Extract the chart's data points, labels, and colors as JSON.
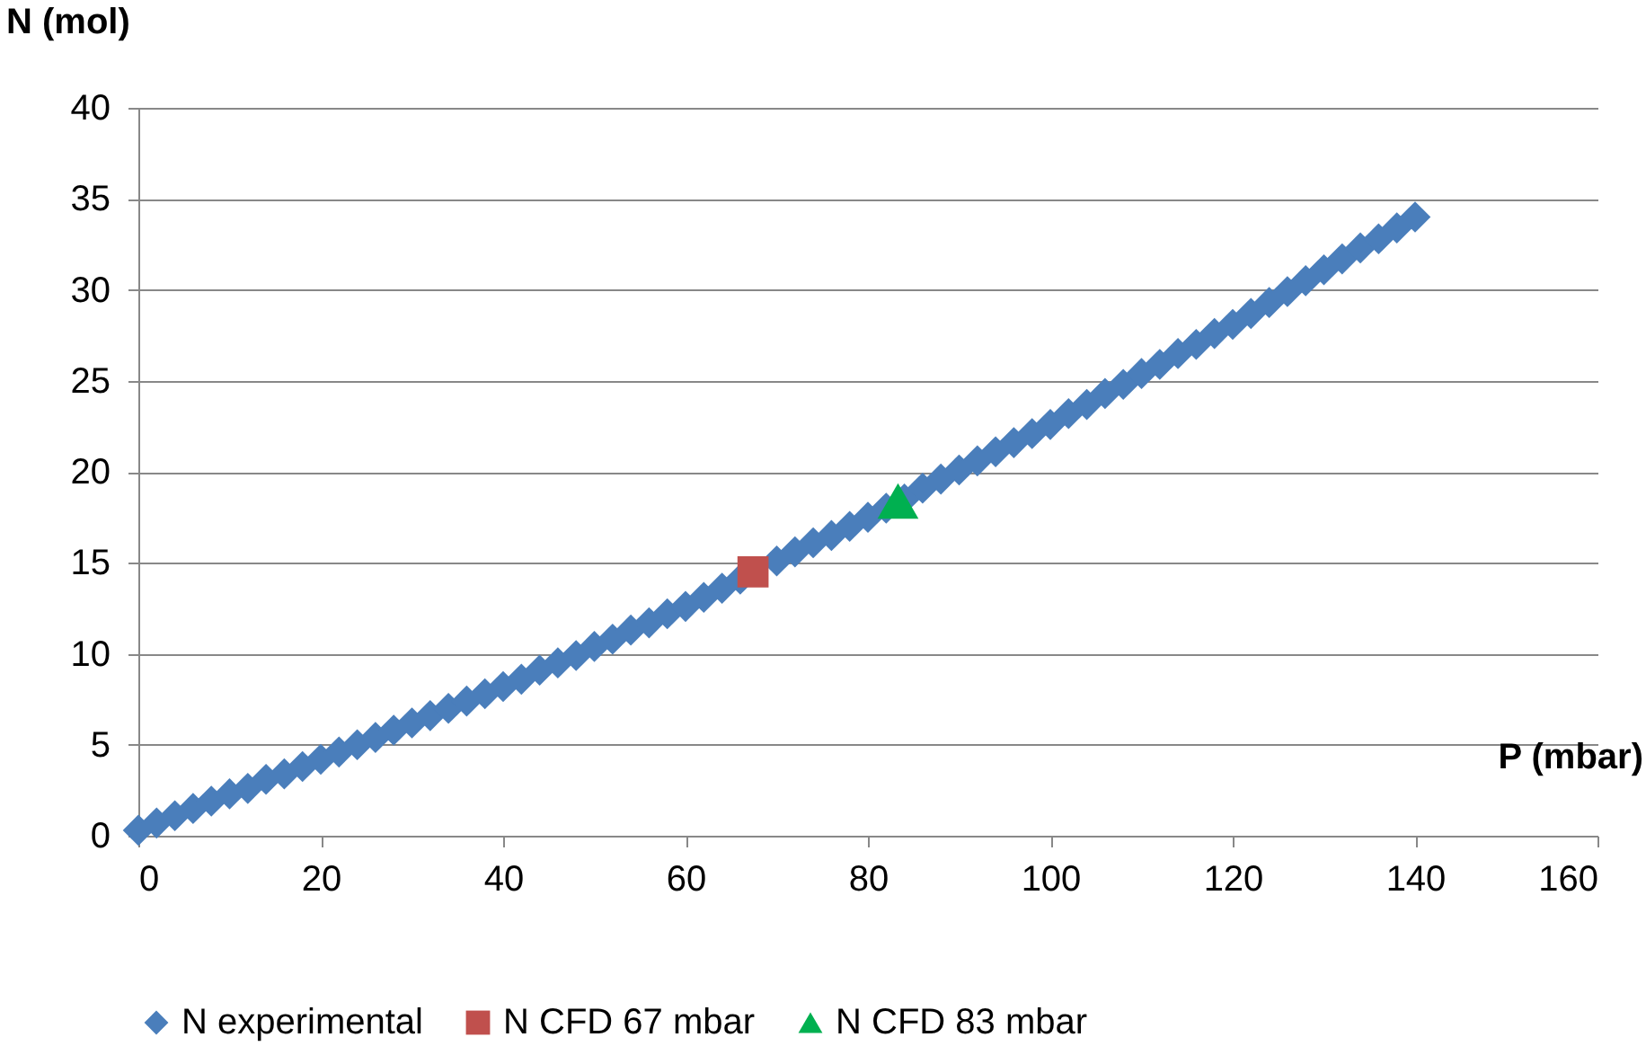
{
  "chart_data": {
    "type": "scatter",
    "xlabel": "P (mbar)",
    "ylabel": "N (mol)",
    "xlim": [
      0,
      160
    ],
    "xticks": [
      0,
      20,
      40,
      60,
      80,
      100,
      120,
      140,
      160
    ],
    "ylim": [
      0,
      40
    ],
    "yticks": [
      0,
      5,
      10,
      15,
      20,
      25,
      30,
      35,
      40
    ],
    "grid": "y",
    "legend": "bottom",
    "series": [
      {
        "name": "N experimental",
        "color": "#4a7ebb",
        "marker": "diamond",
        "x": [
          0,
          2,
          4,
          6,
          8,
          10,
          12,
          14,
          16,
          18,
          20,
          22,
          24,
          26,
          28,
          30,
          32,
          34,
          36,
          38,
          40,
          42,
          44,
          46,
          48,
          50,
          52,
          54,
          56,
          58,
          60,
          62,
          64,
          66,
          70,
          72,
          74,
          76,
          78,
          80,
          82,
          84,
          86,
          88,
          90,
          92,
          94,
          96,
          98,
          100,
          102,
          104,
          106,
          108,
          110,
          112,
          114,
          116,
          118,
          120,
          122,
          124,
          126,
          128,
          130,
          132,
          134,
          136,
          138,
          140
        ],
        "values": [
          0.3,
          0.7,
          1.1,
          1.5,
          1.9,
          2.3,
          2.6,
          3.1,
          3.4,
          3.8,
          4.2,
          4.6,
          5.0,
          5.4,
          5.8,
          6.2,
          6.6,
          7.0,
          7.4,
          7.8,
          8.2,
          8.6,
          9.1,
          9.5,
          9.9,
          10.4,
          10.8,
          11.3,
          11.7,
          12.2,
          12.6,
          13.1,
          13.6,
          14.1,
          15.1,
          15.6,
          16.1,
          16.5,
          17.0,
          17.5,
          18.0,
          18.5,
          19.1,
          19.6,
          20.1,
          20.6,
          21.1,
          21.6,
          22.1,
          22.6,
          23.2,
          23.7,
          24.3,
          24.8,
          25.4,
          25.9,
          26.5,
          27.0,
          27.6,
          28.1,
          28.7,
          29.3,
          29.9,
          30.5,
          31.1,
          31.7,
          32.3,
          32.8,
          33.4,
          34.0
        ]
      },
      {
        "name": "N CFD 67 mbar",
        "color": "#c0504d",
        "marker": "square",
        "x": [
          67.4
        ],
        "values": [
          14.5
        ]
      },
      {
        "name": "N CFD 83 mbar",
        "color": "#00b050",
        "marker": "triangle",
        "x": [
          83.3
        ],
        "values": [
          18.4
        ]
      }
    ]
  }
}
